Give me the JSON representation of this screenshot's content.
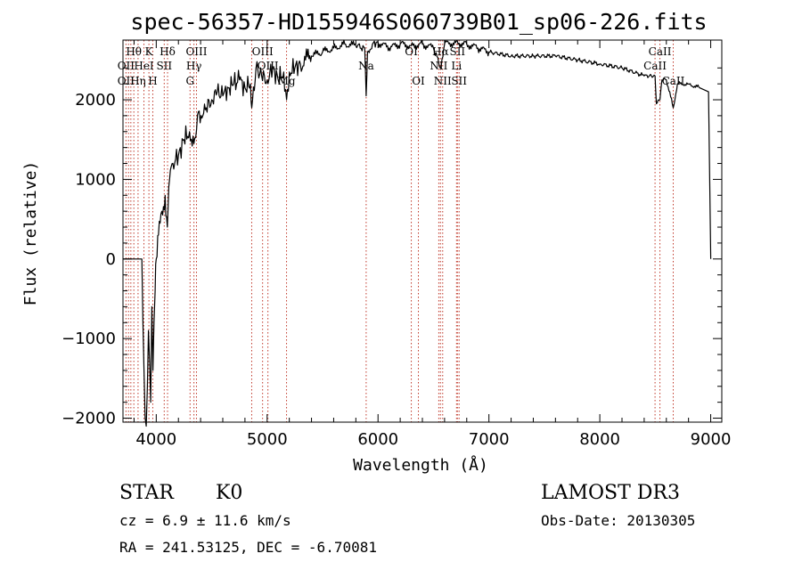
{
  "header": {
    "title": "spec-56357-HD155946S060739B01_sp06-226.fits"
  },
  "info": {
    "object_class": "STAR",
    "subclass": "K0",
    "survey": "LAMOST DR3",
    "redshift": "cz = 6.9 ± 11.6 km/s",
    "obs_date": "Obs-Date: 20130305",
    "coords": "RA = 241.53125, DEC =  -6.70081"
  },
  "chart_data": {
    "type": "line",
    "xlabel": "Wavelength (Å)",
    "ylabel": "Flux (relative)",
    "xlim": [
      3700,
      9100
    ],
    "ylim": [
      -2050,
      2750
    ],
    "xticks": [
      4000,
      5000,
      6000,
      7000,
      8000,
      9000
    ],
    "yticks": [
      -2000,
      -1000,
      0,
      1000,
      2000
    ],
    "tick_labels_x": [
      "4000",
      "5000",
      "6000",
      "7000",
      "8000",
      "9000"
    ],
    "tick_labels_y": [
      "−2000",
      "−1000",
      "0",
      "1000",
      "2000"
    ],
    "series": [
      {
        "color": "#000000",
        "x": [
          3700,
          3870,
          3880,
          3890,
          3900,
          3910,
          3920,
          3930,
          3940,
          3950,
          3960,
          3970,
          3980,
          3990,
          4000,
          4020,
          4050,
          4080,
          4100,
          4120,
          4150,
          4200,
          4250,
          4300,
          4340,
          4380,
          4420,
          4450,
          4500,
          4550,
          4600,
          4650,
          4700,
          4750,
          4800,
          4850,
          4861,
          4900,
          4950,
          5000,
          5050,
          5100,
          5150,
          5175,
          5200,
          5250,
          5300,
          5400,
          5500,
          5600,
          5700,
          5800,
          5880,
          5893,
          5905,
          5950,
          6000,
          6100,
          6200,
          6300,
          6400,
          6500,
          6563,
          6600,
          6700,
          6800,
          6900,
          7000,
          7200,
          7400,
          7600,
          7800,
          8000,
          8200,
          8400,
          8498,
          8510,
          8542,
          8560,
          8600,
          8662,
          8700,
          8800,
          8900,
          8980,
          9000
        ],
        "y": [
          0,
          0,
          -800,
          -1400,
          -2000,
          -2100,
          -1600,
          -900,
          -1300,
          -1800,
          -600,
          -1400,
          -800,
          -400,
          0,
          300,
          600,
          800,
          400,
          1000,
          1200,
          1300,
          1500,
          1600,
          1450,
          1850,
          1800,
          1900,
          2000,
          2100,
          2050,
          2150,
          2200,
          2250,
          2150,
          2200,
          1900,
          2400,
          2300,
          2250,
          2400,
          2250,
          2350,
          2000,
          2350,
          2400,
          2450,
          2550,
          2600,
          2650,
          2700,
          2680,
          2650,
          2050,
          2600,
          2700,
          2720,
          2650,
          2700,
          2680,
          2700,
          2650,
          2400,
          2700,
          2720,
          2700,
          2650,
          2600,
          2550,
          2550,
          2550,
          2500,
          2450,
          2400,
          2300,
          2300,
          1950,
          2000,
          2250,
          2250,
          1900,
          2200,
          2200,
          2150,
          2100,
          0
        ]
      }
    ],
    "spectral_lines": [
      {
        "label": "Hθ",
        "wavelength": 3798,
        "row": 0
      },
      {
        "label": "OII",
        "wavelength": 3727,
        "row": 1
      },
      {
        "label": "OII",
        "wavelength": 3727,
        "row": 2
      },
      {
        "label": "Hη",
        "wavelength": 3836,
        "row": 2
      },
      {
        "label": "K",
        "wavelength": 3934,
        "row": 0
      },
      {
        "label": "HeI",
        "wavelength": 3889,
        "row": 1
      },
      {
        "label": "H",
        "wavelength": 3969,
        "row": 2
      },
      {
        "label": "Hδ",
        "wavelength": 4102,
        "row": 0
      },
      {
        "label": "SII",
        "wavelength": 4072,
        "row": 1
      },
      {
        "label": "OIII",
        "wavelength": 4363,
        "row": 0
      },
      {
        "label": "Hγ",
        "wavelength": 4340,
        "row": 1
      },
      {
        "label": "G",
        "wavelength": 4305,
        "row": 2
      },
      {
        "label": "OIII",
        "wavelength": 4959,
        "row": 0
      },
      {
        "label": "OIII",
        "wavelength": 5007,
        "row": 1
      },
      {
        "label": "Mg",
        "wavelength": 5175,
        "row": 2
      },
      {
        "label": "Na",
        "wavelength": 5893,
        "row": 1
      },
      {
        "label": "OI",
        "wavelength": 6300,
        "row": 0
      },
      {
        "label": "OI",
        "wavelength": 6364,
        "row": 2
      },
      {
        "label": "Hα",
        "wavelength": 6563,
        "row": 0
      },
      {
        "label": "NII",
        "wavelength": 6548,
        "row": 1
      },
      {
        "label": "NII",
        "wavelength": 6583,
        "row": 2
      },
      {
        "label": "SII",
        "wavelength": 6716,
        "row": 0
      },
      {
        "label": "Li",
        "wavelength": 6708,
        "row": 1
      },
      {
        "label": "SII",
        "wavelength": 6731,
        "row": 2
      },
      {
        "label": "CaII",
        "wavelength": 8542,
        "row": 0
      },
      {
        "label": "CaII",
        "wavelength": 8498,
        "row": 1
      },
      {
        "label": "CaII",
        "wavelength": 8662,
        "row": 2
      }
    ],
    "extra_line_markers": [
      3750,
      3771,
      3890,
      4861,
      4861
    ]
  }
}
